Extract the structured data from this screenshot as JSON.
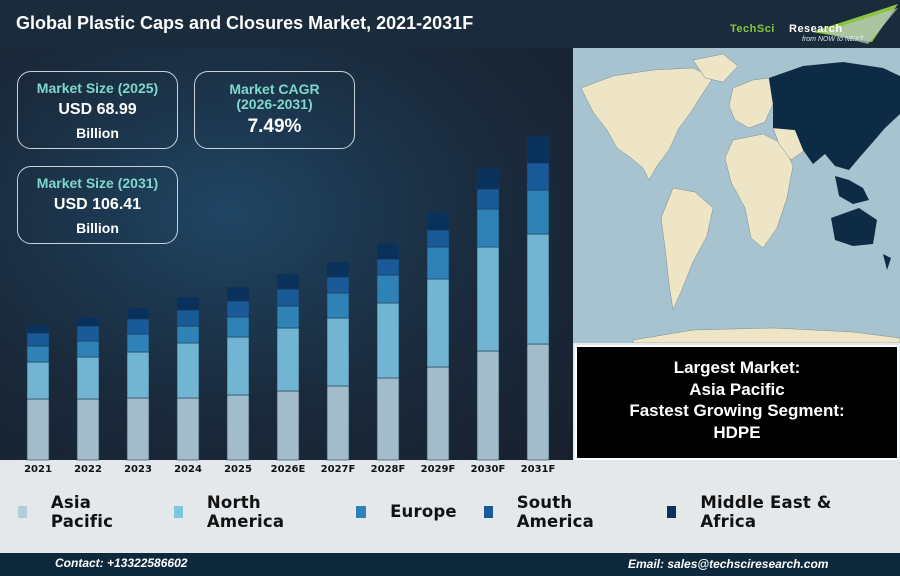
{
  "header": {
    "title": "Global Plastic Caps and Closures Market, 2021-2031F"
  },
  "logo": {
    "brand_part1": "TechSci",
    "brand_part2": "Research",
    "tagline": "from NOW to NEXT"
  },
  "stats": [
    {
      "heading": "Market Size (2025)",
      "value": "USD 68.99",
      "unit": "Billion"
    },
    {
      "heading": "Market CAGR",
      "heading2": "(2026-2031)",
      "value": "7.49%"
    },
    {
      "heading": "Market Size (2031)",
      "value": "USD 106.41",
      "unit": "Billion"
    }
  ],
  "insight": {
    "line1": "Largest Market:",
    "line2": "Asia Pacific",
    "line3": "Fastest Growing Segment:",
    "line4": "HDPE"
  },
  "map": {
    "highlighted_region": "Asia Pacific",
    "colors": {
      "ocean": "#a6c3cf",
      "land": "#ede5c5",
      "highlight": "#0d2b44"
    }
  },
  "chart_data": {
    "type": "bar",
    "stacked": true,
    "categories": [
      "2021",
      "2022",
      "2023",
      "2024",
      "2025",
      "2026E",
      "2027F",
      "2028F",
      "2029F",
      "2030F",
      "2031F"
    ],
    "series": [
      {
        "name": "Asia Pacific",
        "color": "#a3bccb",
        "values": [
          61,
          61,
          62,
          62,
          65,
          69,
          74,
          82,
          93,
          109,
          116
        ]
      },
      {
        "name": "North America",
        "color": "#72b5d3",
        "values": [
          37,
          42,
          46,
          55,
          58,
          63,
          68,
          75,
          88,
          104,
          110
        ]
      },
      {
        "name": "Europe",
        "color": "#2f82b6",
        "values": [
          16,
          16,
          18,
          17,
          20,
          22,
          25,
          28,
          32,
          38,
          44
        ]
      },
      {
        "name": "South America",
        "color": "#1b5a99",
        "values": [
          13,
          15,
          15,
          16,
          16,
          17,
          16,
          16,
          17,
          20,
          27
        ]
      },
      {
        "name": "Middle East & Africa",
        "color": "#0a305c",
        "values": [
          8,
          9,
          11,
          13,
          14,
          15,
          15,
          16,
          18,
          21,
          27
        ]
      }
    ],
    "ylim": [
      0,
      330
    ],
    "y_axis_shown": false,
    "grid": false,
    "legend_position": "bottom"
  },
  "footer": {
    "contact": "Contact: +13322586602",
    "email": "Email: sales@techsciresearch.com"
  }
}
